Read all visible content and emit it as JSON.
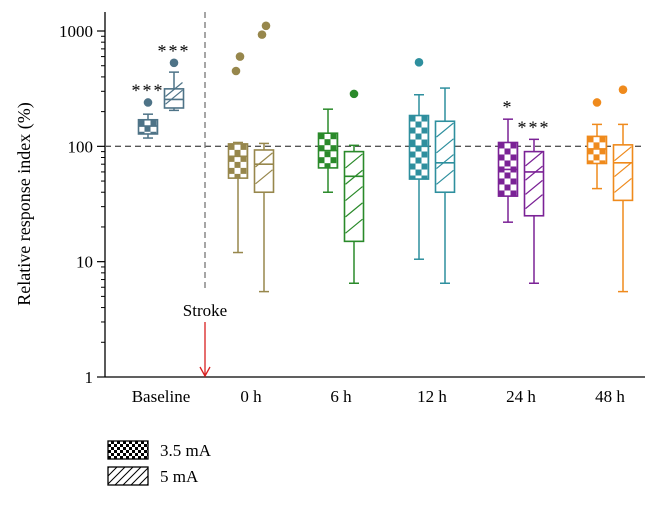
{
  "chart_data": {
    "type": "boxplot",
    "ylabel": "Relative response index (%)",
    "yscale": "log",
    "ylim": [
      1,
      1000
    ],
    "yticks": [
      {
        "value": 1,
        "label": "1"
      },
      {
        "value": 10,
        "label": "10"
      },
      {
        "value": 100,
        "label": "100"
      },
      {
        "value": 1000,
        "label": "1000"
      }
    ],
    "reference_line": 100,
    "annotation": {
      "label": "Stroke"
    },
    "legend": [
      {
        "name": "3.5 mA",
        "pattern": "checker"
      },
      {
        "name": "5 mA",
        "pattern": "hatch"
      }
    ],
    "groups": [
      {
        "label": "Baseline",
        "color": "#4e7387",
        "boxes": [
          {
            "series": "3.5 mA",
            "min": 118,
            "q1": 128,
            "median": 150,
            "q3": 170,
            "max": 190,
            "outliers": [
              240
            ],
            "sig": "***"
          },
          {
            "series": "5 mA",
            "min": 205,
            "q1": 215,
            "median": 255,
            "q3": 315,
            "max": 440,
            "outliers": [
              530
            ],
            "sig": "***"
          }
        ]
      },
      {
        "label": "0 h",
        "color": "#97874c",
        "boxes": [
          {
            "series": "3.5 mA",
            "min": 12,
            "q1": 53,
            "median": 82,
            "q3": 105,
            "max": 108,
            "outliers": [
              450,
              600
            ],
            "sig": ""
          },
          {
            "series": "5 mA",
            "min": 5.5,
            "q1": 40,
            "median": 70,
            "q3": 93,
            "max": 106,
            "outliers": [
              930,
              1110
            ],
            "sig": ""
          }
        ]
      },
      {
        "label": "6 h",
        "color": "#2a8a2a",
        "boxes": [
          {
            "series": "3.5 mA",
            "min": 40,
            "q1": 65,
            "median": 92,
            "q3": 130,
            "max": 210,
            "outliers": [],
            "sig": ""
          },
          {
            "series": "5 mA",
            "min": 6.5,
            "q1": 15,
            "median": 55,
            "q3": 90,
            "max": 102,
            "outliers": [
              285
            ],
            "sig": ""
          }
        ]
      },
      {
        "label": "12 h",
        "color": "#2e8f9e",
        "boxes": [
          {
            "series": "3.5 mA",
            "min": 10.5,
            "q1": 52,
            "median": 100,
            "q3": 185,
            "max": 280,
            "outliers": [
              535
            ],
            "sig": ""
          },
          {
            "series": "5 mA",
            "min": 6.5,
            "q1": 40,
            "median": 72,
            "q3": 165,
            "max": 320,
            "outliers": [],
            "sig": ""
          }
        ]
      },
      {
        "label": "24 h",
        "color": "#7b2296",
        "boxes": [
          {
            "series": "3.5 mA",
            "min": 22,
            "q1": 37,
            "median": 63,
            "q3": 108,
            "max": 172,
            "outliers": [],
            "sig": "*"
          },
          {
            "series": "5 mA",
            "min": 6.5,
            "q1": 25,
            "median": 60,
            "q3": 90,
            "max": 115,
            "outliers": [],
            "sig": "***"
          }
        ]
      },
      {
        "label": "48 h",
        "color": "#ef8a1c",
        "boxes": [
          {
            "series": "3.5 mA",
            "min": 43,
            "q1": 71,
            "median": 95,
            "q3": 122,
            "max": 155,
            "outliers": [
              240
            ],
            "sig": ""
          },
          {
            "series": "5 mA",
            "min": 5.5,
            "q1": 34,
            "median": 72,
            "q3": 103,
            "max": 155,
            "outliers": [
              310
            ],
            "sig": ""
          }
        ]
      }
    ]
  }
}
